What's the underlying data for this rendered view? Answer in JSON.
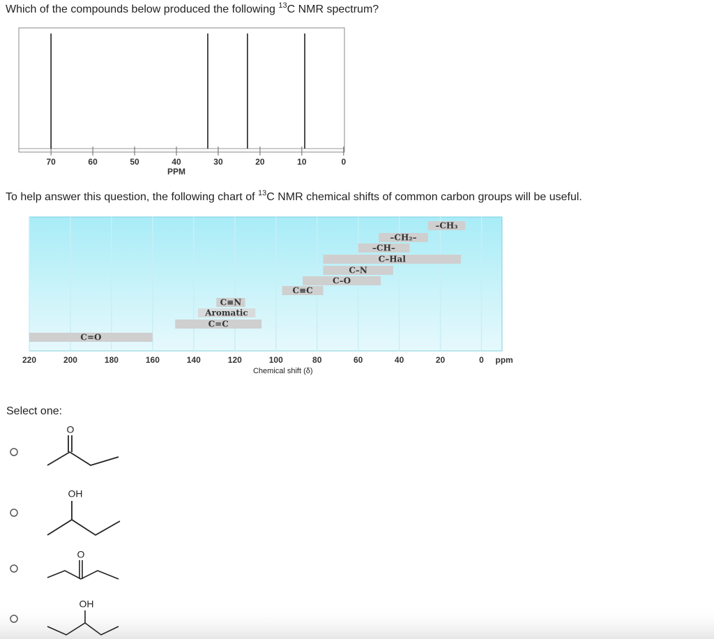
{
  "question": {
    "prefix": "Which of the compounds below produced the following ",
    "sup": "13",
    "suffix": "C NMR spectrum?"
  },
  "spectrum": {
    "xlabel": "PPM",
    "xlim": [
      77.7,
      -0.2
    ],
    "xticks": [
      70,
      60,
      50,
      40,
      30,
      20,
      10,
      0
    ],
    "peaks": [
      70,
      32.5,
      23,
      9.3
    ]
  },
  "helper": {
    "prefix": "To help answer this question, the following chart of ",
    "sup": "13",
    "suffix": "C NMR chemical shifts of common carbon groups will be useful."
  },
  "shift_chart": {
    "xlabel": "Chemical shift (δ)",
    "unit": "ppm",
    "xlim": [
      220,
      -10
    ],
    "xticks": [
      220,
      200,
      180,
      160,
      140,
      120,
      100,
      80,
      60,
      40,
      20,
      0
    ],
    "groups": [
      {
        "label": "C=O",
        "range": [
          220,
          160
        ]
      },
      {
        "label": "C=C",
        "range": [
          149,
          107
        ]
      },
      {
        "label": "Aromatic",
        "range": [
          138,
          110
        ]
      },
      {
        "label": "C≡N",
        "range": [
          129,
          115
        ]
      },
      {
        "label": "C≡C",
        "range": [
          97,
          77
        ]
      },
      {
        "label": "C–O",
        "range": [
          87,
          49
        ]
      },
      {
        "label": "C–N",
        "range": [
          77,
          43
        ]
      },
      {
        "label": "C–Hal",
        "range": [
          77,
          10
        ]
      },
      {
        "label": "–CH–",
        "range": [
          60,
          35
        ]
      },
      {
        "label": "–CH₂–",
        "range": [
          50,
          26
        ]
      },
      {
        "label": "–CH₃",
        "range": [
          26,
          8
        ]
      }
    ]
  },
  "select_label": "Select one:",
  "options": [
    {
      "label": "O"
    },
    {
      "label": "OH"
    },
    {
      "label": "O"
    },
    {
      "label": "OH"
    }
  ]
}
